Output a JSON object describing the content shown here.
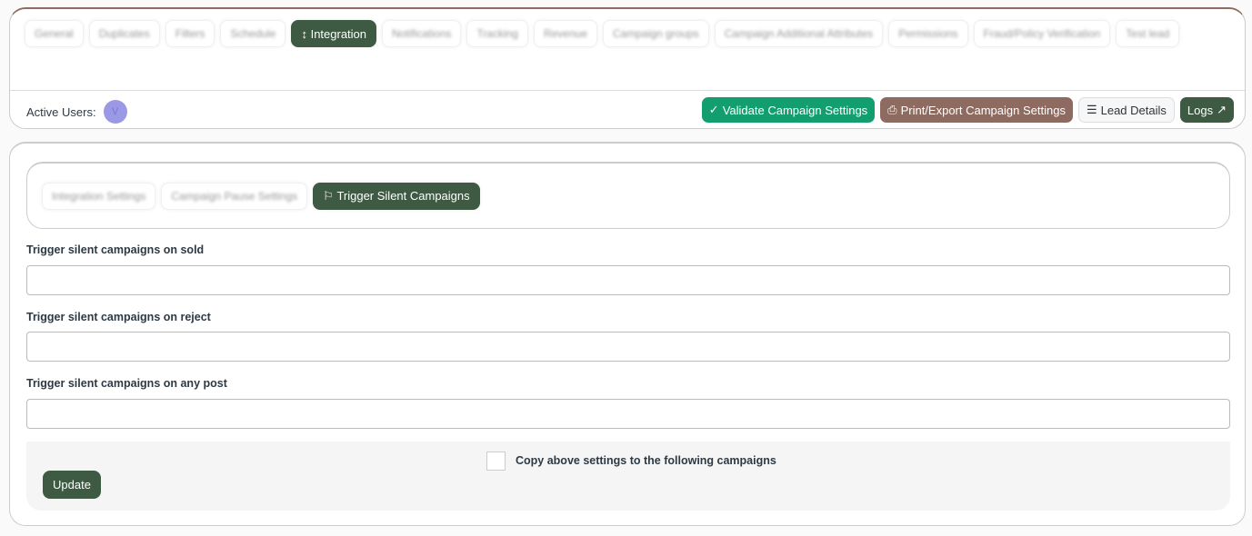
{
  "tabs": [
    {
      "label": "General",
      "icon": "grid"
    },
    {
      "label": "Duplicates",
      "icon": "chat"
    },
    {
      "label": "Filters",
      "icon": "filter"
    },
    {
      "label": "Schedule",
      "icon": "calendar"
    },
    {
      "label": "Integration",
      "icon": "arrows-vertical",
      "active": true
    },
    {
      "label": "Notifications",
      "icon": "bell"
    },
    {
      "label": "Tracking",
      "icon": "search"
    },
    {
      "label": "Revenue",
      "icon": "cash"
    },
    {
      "label": "Campaign groups",
      "icon": "diagram"
    },
    {
      "label": "Campaign Additional Attributes",
      "icon": "file"
    },
    {
      "label": "Permissions",
      "icon": "lock"
    },
    {
      "label": "Fraud/Policy Verification",
      "icon": "shield"
    },
    {
      "label": "Test lead",
      "icon": "flask"
    }
  ],
  "active_users": {
    "label": "Active Users:",
    "avatar": "V"
  },
  "actions": {
    "validate": "Validate Campaign Settings",
    "print": "Print/Export Campaign Settings",
    "lead_details": "Lead Details",
    "logs": "Logs"
  },
  "subtabs": [
    {
      "label": "Integration Settings"
    },
    {
      "label": "Campaign Pause Settings"
    },
    {
      "label": "Trigger Silent Campaigns",
      "active": true
    }
  ],
  "form": {
    "sold_label": "Trigger silent campaigns on sold",
    "sold_value": "",
    "reject_label": "Trigger silent campaigns on reject",
    "reject_value": "",
    "any_label": "Trigger silent campaigns on any post",
    "any_value": "",
    "copy_label": "Copy above settings to the following campaigns",
    "update": "Update"
  },
  "colors": {
    "accent": "#3e5a42",
    "validate": "#139e70",
    "print": "#8e6b60"
  }
}
